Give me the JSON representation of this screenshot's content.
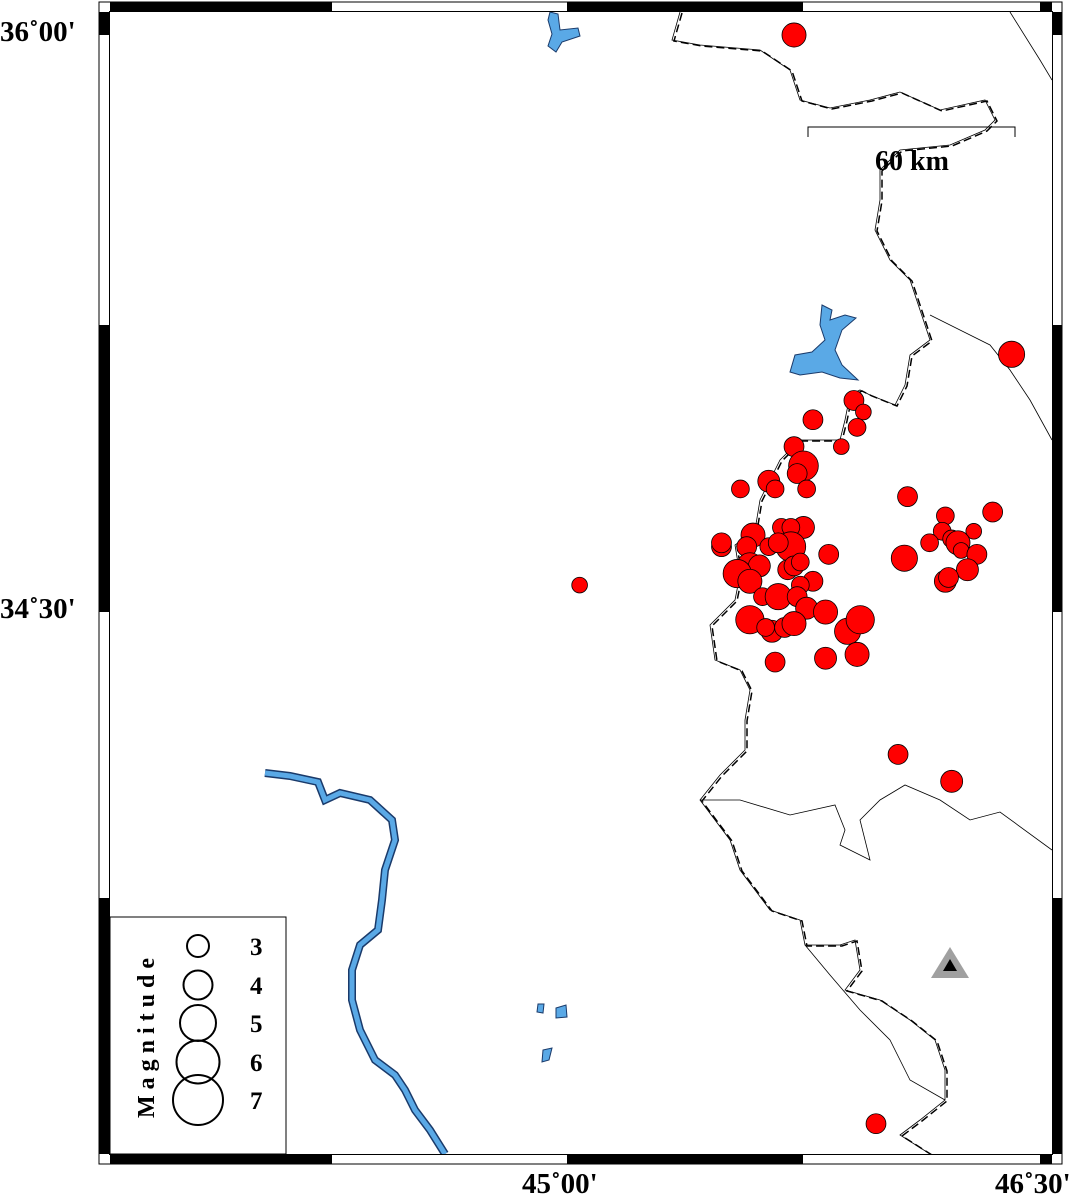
{
  "map": {
    "lat_labels": [
      "36˚00'",
      "34˚30'"
    ],
    "lon_labels": [
      "45˚00'",
      "46˚30'"
    ],
    "extent": {
      "lon": [
        44.53,
        46.54
      ],
      "lat": [
        33.09,
        36.06
      ]
    },
    "scale_bar": {
      "label": "60 km"
    },
    "colors": {
      "event_fill": "#ff0000",
      "water": "#5aa9e6",
      "station": "#a0a0a0"
    },
    "station": {
      "lon": 46.2,
      "lat": 33.42,
      "icon": "triangle-icon"
    },
    "legend": {
      "title": "Magnitude",
      "magnitudes": [
        "3",
        "4",
        "5",
        "6",
        "7"
      ]
    },
    "events": [
      [
        45.72,
        36.0,
        3.3
      ],
      [
        46.41,
        35.17,
        3.6
      ],
      [
        45.04,
        34.57,
        2.1
      ],
      [
        46.05,
        34.13,
        2.7
      ],
      [
        46.22,
        34.06,
        3.0
      ],
      [
        45.98,
        33.17,
        2.7
      ],
      [
        45.91,
        35.05,
        2.7
      ],
      [
        45.94,
        35.02,
        2.1
      ],
      [
        45.92,
        34.98,
        2.4
      ],
      [
        45.78,
        35.0,
        2.7
      ],
      [
        45.87,
        34.93,
        2.1
      ],
      [
        45.72,
        34.93,
        2.7
      ],
      [
        45.75,
        34.88,
        4.1
      ],
      [
        45.73,
        34.86,
        2.7
      ],
      [
        45.76,
        34.82,
        2.4
      ],
      [
        45.64,
        34.84,
        3.0
      ],
      [
        45.66,
        34.82,
        2.4
      ],
      [
        45.55,
        34.82,
        2.4
      ],
      [
        46.08,
        34.8,
        2.7
      ],
      [
        46.35,
        34.76,
        2.7
      ],
      [
        46.2,
        34.75,
        2.4
      ],
      [
        46.19,
        34.71,
        2.4
      ],
      [
        46.29,
        34.71,
        2.1
      ],
      [
        46.22,
        34.69,
        2.4
      ],
      [
        46.24,
        34.68,
        3.3
      ],
      [
        46.15,
        34.68,
        2.4
      ],
      [
        46.25,
        34.66,
        2.1
      ],
      [
        46.3,
        34.65,
        2.7
      ],
      [
        46.07,
        34.64,
        3.6
      ],
      [
        46.27,
        34.61,
        3.0
      ],
      [
        46.2,
        34.58,
        3.0
      ],
      [
        46.21,
        34.59,
        2.7
      ],
      [
        45.68,
        34.72,
        2.4
      ],
      [
        45.75,
        34.72,
        3.0
      ],
      [
        45.71,
        34.72,
        2.4
      ],
      [
        45.59,
        34.7,
        3.3
      ],
      [
        45.49,
        34.67,
        2.7
      ],
      [
        45.49,
        34.68,
        2.7
      ],
      [
        45.57,
        34.67,
        2.7
      ],
      [
        45.71,
        34.67,
        4.1
      ],
      [
        45.64,
        34.67,
        2.4
      ],
      [
        45.67,
        34.68,
        2.7
      ],
      [
        45.83,
        34.65,
        2.7
      ],
      [
        45.58,
        34.62,
        3.6
      ],
      [
        45.61,
        34.62,
        3.0
      ],
      [
        45.54,
        34.6,
        3.9
      ],
      [
        45.58,
        34.58,
        3.3
      ],
      [
        45.7,
        34.61,
        2.7
      ],
      [
        45.72,
        34.62,
        2.7
      ],
      [
        45.74,
        34.63,
        2.4
      ],
      [
        45.78,
        34.58,
        2.7
      ],
      [
        45.74,
        34.57,
        2.4
      ],
      [
        45.62,
        34.54,
        2.4
      ],
      [
        45.67,
        34.54,
        3.6
      ],
      [
        45.73,
        34.54,
        2.7
      ],
      [
        45.76,
        34.51,
        3.0
      ],
      [
        45.82,
        34.5,
        3.3
      ],
      [
        45.58,
        34.48,
        3.9
      ],
      [
        45.65,
        34.45,
        3.0
      ],
      [
        45.69,
        34.46,
        2.7
      ],
      [
        45.72,
        34.47,
        3.3
      ],
      [
        45.89,
        34.45,
        3.6
      ],
      [
        45.93,
        34.48,
        3.9
      ],
      [
        45.66,
        34.37,
        2.7
      ],
      [
        45.82,
        34.38,
        3.0
      ],
      [
        45.92,
        34.39,
        3.3
      ],
      [
        45.63,
        34.46,
        2.4
      ]
    ]
  }
}
